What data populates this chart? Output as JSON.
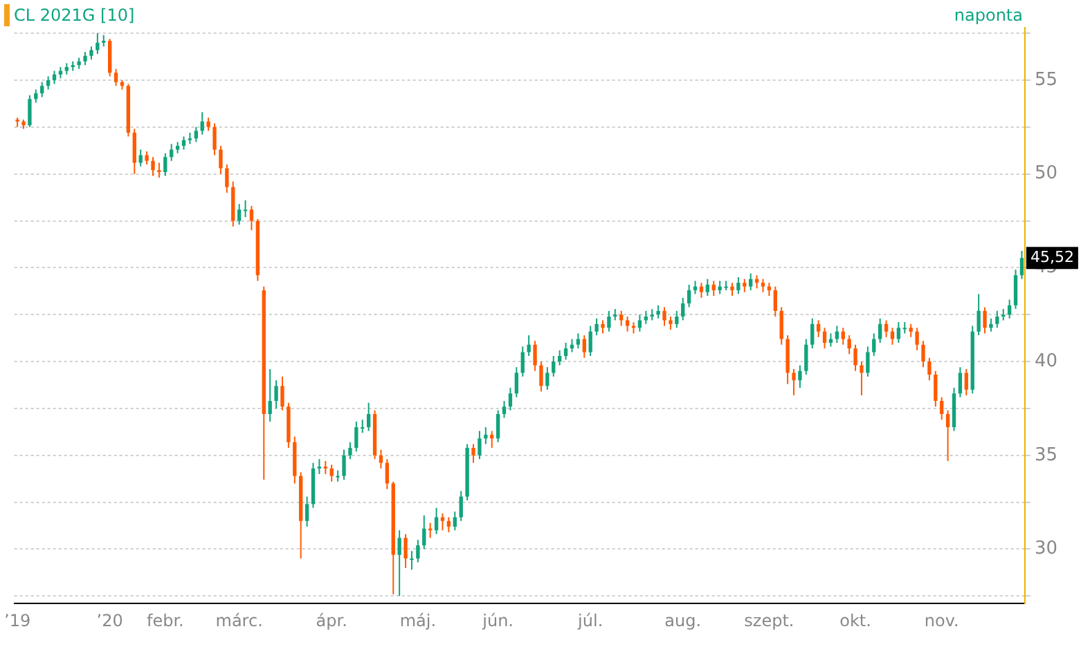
{
  "chart_data": {
    "type": "candlestick",
    "title": "CL 2021G [10]",
    "annotations": [
      "naponta",
      {
        "text": "45,52",
        "y": 45.52
      }
    ],
    "categories": [
      "’19",
      null,
      null,
      null,
      null,
      null,
      null,
      null,
      null,
      null,
      null,
      null,
      null,
      null,
      null,
      "’20",
      null,
      null,
      null,
      null,
      null,
      null,
      null,
      null,
      "febr.",
      null,
      null,
      null,
      null,
      null,
      null,
      null,
      null,
      null,
      null,
      null,
      "márc.",
      null,
      null,
      null,
      null,
      null,
      null,
      null,
      null,
      null,
      null,
      null,
      null,
      null,
      null,
      "ápr.",
      null,
      null,
      null,
      null,
      null,
      null,
      null,
      null,
      null,
      null,
      null,
      null,
      null,
      "máj.",
      null,
      null,
      null,
      null,
      null,
      null,
      null,
      null,
      null,
      null,
      null,
      null,
      "jún.",
      null,
      null,
      null,
      null,
      null,
      null,
      null,
      null,
      null,
      null,
      null,
      null,
      null,
      null,
      "júl.",
      null,
      null,
      null,
      null,
      null,
      null,
      null,
      null,
      null,
      null,
      null,
      null,
      null,
      null,
      "aug.",
      null,
      null,
      null,
      null,
      null,
      null,
      null,
      null,
      null,
      null,
      null,
      null,
      null,
      "szept.",
      null,
      null,
      null,
      null,
      null,
      null,
      null,
      null,
      null,
      null,
      null,
      null,
      null,
      "okt.",
      null,
      null,
      null,
      null,
      null,
      null,
      null,
      null,
      null,
      null,
      null,
      null,
      null,
      "nov.",
      null,
      null,
      null,
      null,
      null,
      null,
      null,
      null,
      null,
      null,
      null,
      null,
      null
    ],
    "ohlc": [
      [
        52.9,
        53.0,
        52.5,
        52.8
      ],
      [
        52.8,
        52.9,
        52.4,
        52.6
      ],
      [
        52.6,
        54.2,
        52.5,
        54.0
      ],
      [
        54.0,
        54.5,
        53.8,
        54.3
      ],
      [
        54.3,
        54.9,
        54.1,
        54.7
      ],
      [
        54.7,
        55.2,
        54.5,
        55.0
      ],
      [
        55.0,
        55.5,
        54.8,
        55.3
      ],
      [
        55.3,
        55.7,
        55.1,
        55.5
      ],
      [
        55.5,
        55.9,
        55.3,
        55.7
      ],
      [
        55.7,
        56.0,
        55.5,
        55.8
      ],
      [
        55.8,
        56.2,
        55.6,
        56.0
      ],
      [
        56.0,
        56.5,
        55.8,
        56.3
      ],
      [
        56.3,
        56.8,
        56.1,
        56.6
      ],
      [
        56.6,
        57.5,
        56.4,
        57.0
      ],
      [
        57.0,
        57.4,
        56.8,
        57.1
      ],
      [
        57.1,
        57.2,
        55.2,
        55.4
      ],
      [
        55.4,
        55.6,
        54.7,
        54.9
      ],
      [
        54.9,
        55.0,
        54.5,
        54.7
      ],
      [
        54.7,
        54.8,
        52.0,
        52.2
      ],
      [
        52.2,
        52.4,
        50.0,
        50.6
      ],
      [
        50.6,
        51.3,
        50.4,
        51.0
      ],
      [
        51.0,
        51.2,
        50.5,
        50.7
      ],
      [
        50.7,
        50.9,
        49.9,
        50.2
      ],
      [
        50.2,
        50.6,
        49.8,
        50.1
      ],
      [
        50.1,
        51.1,
        49.9,
        50.9
      ],
      [
        50.9,
        51.6,
        50.7,
        51.3
      ],
      [
        51.3,
        51.7,
        51.1,
        51.5
      ],
      [
        51.5,
        52.0,
        51.3,
        51.8
      ],
      [
        51.8,
        52.2,
        51.6,
        51.9
      ],
      [
        51.9,
        52.5,
        51.7,
        52.3
      ],
      [
        52.3,
        53.3,
        52.1,
        52.8
      ],
      [
        52.8,
        53.0,
        52.3,
        52.5
      ],
      [
        52.5,
        52.7,
        51.0,
        51.3
      ],
      [
        51.3,
        51.5,
        50.0,
        50.3
      ],
      [
        50.3,
        50.5,
        49.0,
        49.3
      ],
      [
        49.3,
        49.6,
        47.2,
        47.5
      ],
      [
        47.5,
        48.4,
        47.3,
        48.1
      ],
      [
        48.1,
        48.6,
        47.7,
        48.1
      ],
      [
        48.1,
        48.3,
        47.0,
        47.5
      ],
      [
        47.5,
        47.6,
        44.3,
        44.6
      ],
      [
        43.8,
        44.0,
        33.7,
        37.2
      ],
      [
        37.2,
        39.6,
        36.8,
        37.9
      ],
      [
        37.9,
        39.0,
        37.5,
        38.7
      ],
      [
        38.7,
        39.2,
        37.4,
        37.6
      ],
      [
        37.6,
        37.8,
        35.4,
        35.7
      ],
      [
        35.7,
        36.0,
        33.5,
        33.9
      ],
      [
        33.9,
        34.1,
        29.5,
        31.5
      ],
      [
        31.5,
        32.8,
        31.2,
        32.4
      ],
      [
        32.4,
        34.6,
        32.2,
        34.3
      ],
      [
        34.3,
        34.8,
        34.0,
        34.4
      ],
      [
        34.4,
        34.7,
        34.0,
        34.3
      ],
      [
        34.3,
        34.5,
        33.6,
        33.9
      ],
      [
        33.9,
        34.2,
        33.6,
        33.9
      ],
      [
        33.9,
        35.3,
        33.7,
        35.0
      ],
      [
        35.0,
        35.7,
        34.8,
        35.4
      ],
      [
        35.4,
        36.8,
        35.2,
        36.5
      ],
      [
        36.5,
        36.9,
        36.2,
        36.5
      ],
      [
        36.5,
        37.8,
        36.3,
        37.2
      ],
      [
        37.2,
        37.4,
        34.8,
        35.0
      ],
      [
        35.0,
        35.3,
        34.3,
        34.6
      ],
      [
        34.6,
        34.8,
        33.2,
        33.5
      ],
      [
        33.5,
        33.6,
        27.6,
        29.7
      ],
      [
        29.7,
        31.0,
        27.5,
        30.6
      ],
      [
        30.6,
        30.8,
        29.0,
        29.5
      ],
      [
        29.5,
        29.9,
        28.9,
        29.5
      ],
      [
        29.5,
        30.5,
        29.3,
        30.2
      ],
      [
        30.2,
        31.8,
        30.0,
        31.1
      ],
      [
        31.1,
        31.4,
        30.6,
        31.0
      ],
      [
        31.0,
        32.2,
        30.8,
        31.7
      ],
      [
        31.7,
        31.9,
        31.0,
        31.5
      ],
      [
        31.5,
        31.7,
        30.9,
        31.2
      ],
      [
        31.2,
        32.0,
        31.0,
        31.7
      ],
      [
        31.7,
        33.1,
        31.5,
        32.8
      ],
      [
        32.8,
        35.6,
        32.6,
        35.4
      ],
      [
        35.4,
        35.6,
        34.6,
        35.0
      ],
      [
        35.0,
        36.3,
        34.8,
        35.9
      ],
      [
        35.9,
        36.5,
        35.6,
        36.1
      ],
      [
        36.1,
        36.3,
        35.4,
        35.9
      ],
      [
        35.9,
        37.4,
        35.7,
        37.2
      ],
      [
        37.2,
        37.9,
        37.0,
        37.6
      ],
      [
        37.6,
        38.6,
        37.4,
        38.3
      ],
      [
        38.3,
        39.7,
        38.1,
        39.4
      ],
      [
        39.4,
        40.8,
        39.2,
        40.5
      ],
      [
        40.5,
        41.4,
        40.3,
        40.9
      ],
      [
        40.9,
        41.1,
        39.5,
        39.8
      ],
      [
        39.8,
        40.0,
        38.4,
        38.7
      ],
      [
        38.7,
        39.7,
        38.5,
        39.4
      ],
      [
        39.4,
        40.3,
        39.2,
        40.0
      ],
      [
        40.0,
        40.6,
        39.8,
        40.3
      ],
      [
        40.3,
        41.0,
        40.1,
        40.7
      ],
      [
        40.7,
        41.2,
        40.5,
        40.9
      ],
      [
        40.9,
        41.5,
        40.7,
        41.2
      ],
      [
        41.2,
        41.4,
        40.2,
        40.5
      ],
      [
        40.5,
        41.9,
        40.3,
        41.6
      ],
      [
        41.6,
        42.3,
        41.4,
        42.0
      ],
      [
        42.0,
        42.2,
        41.5,
        41.8
      ],
      [
        41.8,
        42.7,
        41.6,
        42.4
      ],
      [
        42.4,
        42.8,
        42.2,
        42.5
      ],
      [
        42.5,
        42.7,
        41.9,
        42.2
      ],
      [
        42.2,
        42.4,
        41.6,
        41.9
      ],
      [
        41.9,
        42.1,
        41.5,
        41.8
      ],
      [
        41.8,
        42.5,
        41.6,
        42.2
      ],
      [
        42.2,
        42.7,
        42.0,
        42.4
      ],
      [
        42.4,
        42.8,
        42.2,
        42.5
      ],
      [
        42.5,
        43.0,
        42.3,
        42.7
      ],
      [
        42.7,
        42.9,
        41.9,
        42.2
      ],
      [
        42.2,
        42.4,
        41.7,
        42.0
      ],
      [
        42.0,
        42.7,
        41.8,
        42.4
      ],
      [
        42.4,
        43.4,
        42.2,
        43.1
      ],
      [
        43.1,
        44.1,
        42.9,
        43.8
      ],
      [
        43.8,
        44.3,
        43.6,
        44.0
      ],
      [
        44.0,
        44.2,
        43.4,
        43.7
      ],
      [
        43.7,
        44.4,
        43.5,
        44.1
      ],
      [
        44.1,
        44.3,
        43.5,
        43.8
      ],
      [
        43.8,
        44.3,
        43.6,
        44.0
      ],
      [
        44.0,
        44.3,
        43.8,
        44.0
      ],
      [
        44.0,
        44.2,
        43.5,
        43.8
      ],
      [
        43.8,
        44.5,
        43.6,
        44.2
      ],
      [
        44.2,
        44.4,
        43.7,
        44.0
      ],
      [
        44.0,
        44.7,
        43.8,
        44.4
      ],
      [
        44.4,
        44.6,
        43.9,
        44.2
      ],
      [
        44.2,
        44.4,
        43.7,
        44.0
      ],
      [
        44.0,
        44.2,
        43.5,
        43.8
      ],
      [
        43.8,
        44.0,
        42.4,
        42.7
      ],
      [
        42.7,
        42.9,
        40.9,
        41.2
      ],
      [
        41.2,
        41.4,
        38.8,
        39.4
      ],
      [
        39.4,
        39.6,
        38.2,
        39.0
      ],
      [
        39.0,
        39.8,
        38.6,
        39.5
      ],
      [
        39.5,
        41.2,
        39.3,
        40.9
      ],
      [
        40.9,
        42.3,
        40.7,
        42.0
      ],
      [
        42.0,
        42.2,
        41.3,
        41.6
      ],
      [
        41.6,
        41.8,
        40.7,
        41.0
      ],
      [
        41.0,
        41.5,
        40.8,
        41.2
      ],
      [
        41.2,
        41.9,
        41.0,
        41.6
      ],
      [
        41.6,
        41.8,
        40.9,
        41.2
      ],
      [
        41.2,
        41.4,
        40.4,
        40.7
      ],
      [
        40.7,
        40.9,
        39.5,
        39.8
      ],
      [
        39.8,
        40.0,
        38.2,
        39.4
      ],
      [
        39.4,
        40.8,
        39.2,
        40.5
      ],
      [
        40.5,
        41.5,
        40.3,
        41.2
      ],
      [
        41.2,
        42.3,
        41.0,
        42.0
      ],
      [
        42.0,
        42.2,
        41.3,
        41.6
      ],
      [
        41.6,
        41.8,
        40.9,
        41.2
      ],
      [
        41.2,
        42.1,
        41.0,
        41.8
      ],
      [
        41.8,
        42.1,
        41.5,
        41.8
      ],
      [
        41.8,
        42.0,
        41.3,
        41.6
      ],
      [
        41.6,
        41.8,
        40.6,
        40.9
      ],
      [
        40.9,
        41.1,
        39.7,
        40.0
      ],
      [
        40.0,
        40.2,
        39.0,
        39.3
      ],
      [
        39.3,
        39.5,
        37.6,
        37.9
      ],
      [
        37.9,
        38.1,
        36.9,
        37.2
      ],
      [
        37.2,
        37.4,
        34.7,
        36.5
      ],
      [
        36.5,
        38.6,
        36.3,
        38.3
      ],
      [
        38.3,
        39.7,
        38.1,
        39.4
      ],
      [
        39.4,
        39.6,
        38.2,
        38.5
      ],
      [
        38.5,
        41.9,
        38.3,
        41.6
      ],
      [
        41.6,
        43.6,
        41.4,
        42.7
      ],
      [
        42.7,
        42.9,
        41.5,
        41.8
      ],
      [
        41.8,
        42.3,
        41.6,
        42.0
      ],
      [
        42.0,
        42.7,
        41.8,
        42.4
      ],
      [
        42.4,
        42.8,
        42.2,
        42.5
      ],
      [
        42.5,
        43.3,
        42.3,
        43.0
      ],
      [
        43.0,
        44.9,
        42.8,
        44.6
      ],
      [
        44.6,
        45.9,
        44.4,
        45.52
      ]
    ],
    "ylim": [
      27.1,
      57.8
    ],
    "yticks": [
      {
        "value": 27.5,
        "label": null
      },
      30,
      {
        "value": 32.5,
        "label": null
      },
      35,
      {
        "value": 37.5,
        "label": null
      },
      40,
      {
        "value": 42.5,
        "label": null
      },
      45,
      {
        "value": 47.5,
        "label": null
      },
      50,
      {
        "value": 52.5,
        "label": null
      },
      55,
      {
        "value": 57.5,
        "label": null
      }
    ],
    "grid": "y",
    "legend": false
  }
}
